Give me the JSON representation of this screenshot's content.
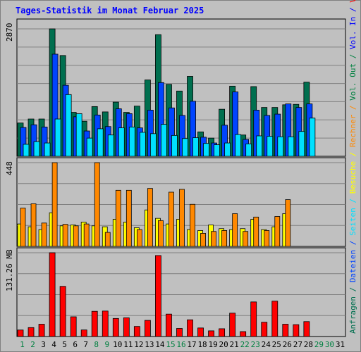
{
  "chart_data": {
    "type": "bar",
    "title": "Tages-Statistik im Monat Februar 2025",
    "x": [
      "1",
      "2",
      "3",
      "4",
      "5",
      "6",
      "7",
      "8",
      "9",
      "10",
      "11",
      "12",
      "13",
      "14",
      "15",
      "16",
      "17",
      "18",
      "19",
      "20",
      "21",
      "22",
      "23",
      "24",
      "25",
      "26",
      "27",
      "28",
      "29",
      "30",
      "31"
    ],
    "weekend_days": [
      "1",
      "2",
      "8",
      "9",
      "15",
      "16",
      "22",
      "23",
      "29",
      "30"
    ],
    "panels": [
      {
        "id": "top",
        "max_label": "2870",
        "ylim": [
          0,
          2870
        ],
        "series": [
          {
            "name": "Anfragen",
            "color": "#006f4f",
            "values": [
              750,
              840,
              840,
              2870,
              2270,
              990,
              790,
              1120,
              1000,
              1220,
              990,
              1130,
              1720,
              2740,
              1620,
              1470,
              1800,
              550,
              410,
              1060,
              1580,
              480,
              1570,
              1100,
              1100,
              1160,
              1170,
              1670,
              0,
              0,
              0
            ]
          },
          {
            "name": "Dateien",
            "color": "#0044ff",
            "values": [
              650,
              710,
              660,
              2300,
              1600,
              890,
              570,
              930,
              670,
              1070,
              960,
              640,
              1040,
              1660,
              1090,
              920,
              1240,
              430,
              300,
              700,
              1450,
              380,
              1040,
              920,
              950,
              1180,
              1100,
              1180,
              0,
              0,
              0
            ]
          },
          {
            "name": "Seiten",
            "color": "#00e0ff",
            "values": [
              270,
              330,
              300,
              840,
              1390,
              960,
              410,
              620,
              480,
              640,
              660,
              540,
              510,
              720,
              470,
              400,
              420,
              290,
              260,
              300,
              490,
              280,
              460,
              450,
              440,
              440,
              560,
              860,
              0,
              0,
              0
            ]
          }
        ]
      },
      {
        "id": "middle",
        "max_label": "448",
        "ylim": [
          0,
          448
        ],
        "series": [
          {
            "name": "Besuche",
            "color": "#ffff00",
            "values": [
              120,
              105,
              90,
              180,
              110,
              115,
              130,
              110,
              105,
              145,
              130,
              100,
              195,
              150,
              120,
              145,
              90,
              85,
              115,
              95,
              90,
              95,
              145,
              90,
              105,
              175,
              0,
              0,
              0,
              0,
              0
            ]
          },
          {
            "name": "Rechner",
            "color": "#ff8800",
            "values": [
              205,
              228,
              125,
              448,
              118,
              110,
              120,
              448,
              75,
              300,
              300,
              90,
              310,
              138,
              290,
              305,
              225,
              70,
              80,
              85,
              175,
              80,
              157,
              85,
              160,
              250,
              0,
              0,
              0,
              0,
              0
            ]
          }
        ]
      },
      {
        "id": "bottom",
        "max_label": "131.26 MB",
        "ylim": [
          0,
          131.26
        ],
        "series": [
          {
            "name": "Volumen",
            "color": "#ff0000",
            "values": [
              10.2,
              14.0,
              19.3,
              131.3,
              78.6,
              30.9,
              10.3,
              39.5,
              39.9,
              28.3,
              29.3,
              15.8,
              25.3,
              126.9,
              35.1,
              12.7,
              26.2,
              13.4,
              8.9,
              12.2,
              36.6,
              7.7,
              54.2,
              22.4,
              55.4,
              19.3,
              18.6,
              23.4,
              0,
              0,
              0
            ]
          }
        ]
      }
    ],
    "right_legend": [
      {
        "text": "Anfragen",
        "color": "#006f4f"
      },
      {
        "text": " / ",
        "color": "#006f4f"
      },
      {
        "text": "Dateien",
        "color": "#0044ff"
      },
      {
        "text": " / ",
        "color": "#0044ff"
      },
      {
        "text": "Seiten",
        "color": "#00e0ff"
      },
      {
        "text": " / ",
        "color": "#00e0ff"
      },
      {
        "text": "Besuche",
        "color": "#ffff00"
      },
      {
        "text": " / ",
        "color": "#ffff00"
      },
      {
        "text": "Rechner",
        "color": "#ff8800"
      },
      {
        "text": " / ",
        "color": "#ff8800"
      },
      {
        "text": "Vol. Out",
        "color": "#008040"
      },
      {
        "text": " / ",
        "color": "#008040"
      },
      {
        "text": "Vol. In",
        "color": "#0000ff"
      },
      {
        "text": " / ",
        "color": "#0000ff"
      },
      {
        "text": "Volumen",
        "color": "#ff0000"
      }
    ],
    "colors": {
      "title": "#0000ff",
      "weekday_label": "#000000",
      "weekend_label": "#008040",
      "grid": "#808080",
      "background": "#c0c0c0"
    }
  }
}
